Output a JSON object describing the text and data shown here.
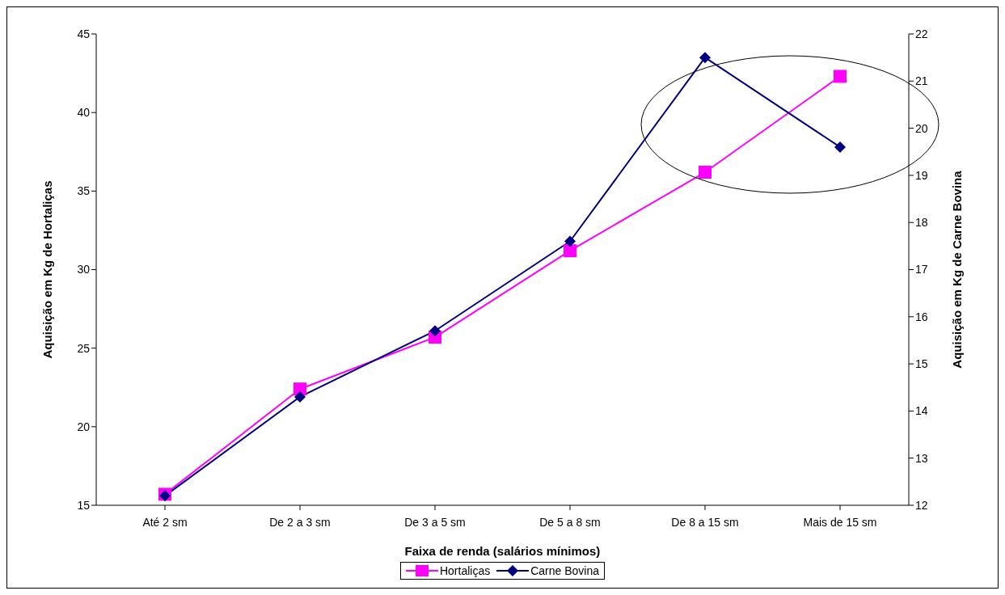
{
  "chart_data": {
    "type": "line",
    "xlabel": "Faixa de renda (salários mínimos)",
    "ylabel": "Aquisição em Kg de Hortaliças",
    "y2label": "Aquisição em Kg de Carne Bovina",
    "categories": [
      "Até 2 sm",
      "De 2 a 3 sm",
      "De 3 a 5 sm",
      "De 5 a 8 sm",
      "De 8 a 15 sm",
      "Mais de 15 sm"
    ],
    "series": [
      {
        "name": "Hortaliças",
        "color": "#ff00ff",
        "marker": "square",
        "values": [
          15.7,
          22.4,
          25.7,
          31.2,
          36.2,
          42.3
        ]
      },
      {
        "name": "Carne Bovina",
        "color": "#000080",
        "marker": "diamond",
        "axis": "y2",
        "values": [
          12.2,
          14.3,
          15.7,
          17.6,
          21.5,
          19.6
        ]
      }
    ],
    "ylim": [
      15,
      45
    ],
    "yticks": [
      15,
      20,
      25,
      30,
      35,
      40,
      45
    ],
    "y2lim": [
      12,
      22
    ],
    "y2ticks": [
      12,
      13,
      14,
      15,
      16,
      17,
      18,
      19,
      20,
      21,
      22
    ],
    "grid": false,
    "legend": "bottom",
    "line_style": "solid"
  }
}
